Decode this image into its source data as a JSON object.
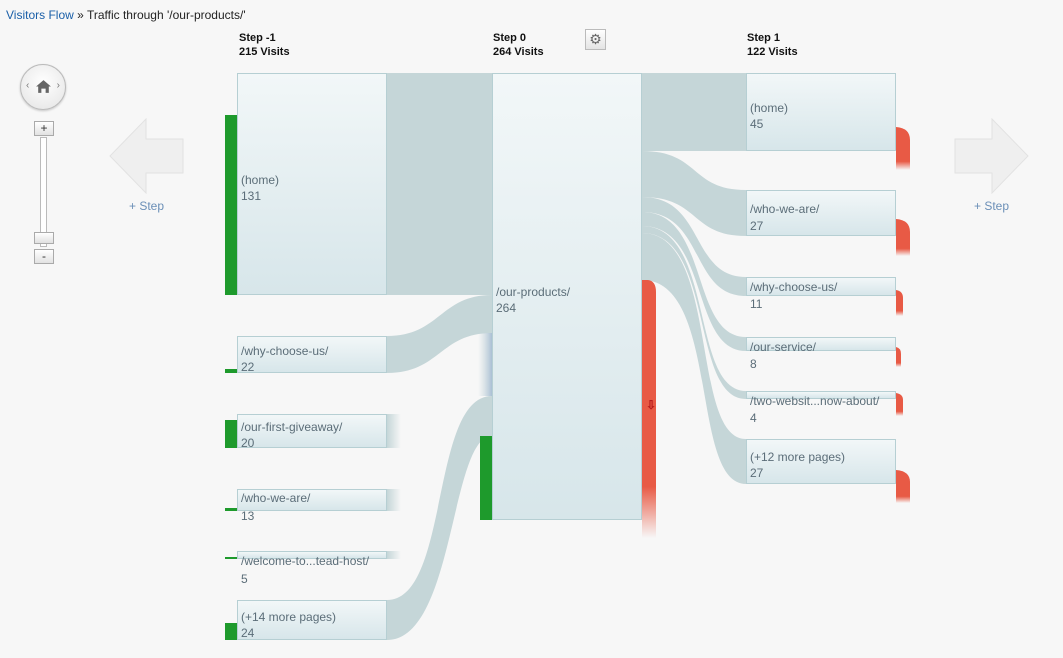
{
  "breadcrumb": {
    "root": "Visitors Flow",
    "separator": "»",
    "current": "Traffic through '/our-products/'"
  },
  "steps": [
    {
      "title": "Step -1",
      "visits": "215 Visits"
    },
    {
      "title": "Step 0",
      "visits": "264 Visits"
    },
    {
      "title": "Step 1",
      "visits": "122 Visits"
    }
  ],
  "step_minus1_nodes": [
    {
      "label": "(home)",
      "count": "131"
    },
    {
      "label": "/why-choose-us/",
      "count": "22"
    },
    {
      "label": "/our-first-giveaway/",
      "count": "20"
    },
    {
      "label": "/who-we-are/",
      "count": "13"
    },
    {
      "label": "/welcome-to...tead-host/",
      "count": "5"
    },
    {
      "label": "(+14 more pages)",
      "count": "24"
    }
  ],
  "step0_node": {
    "label": "/our-products/",
    "count": "264"
  },
  "step1_nodes": [
    {
      "label": "(home)",
      "count": "45"
    },
    {
      "label": "/who-we-are/",
      "count": "27"
    },
    {
      "label": "/why-choose-us/",
      "count": "11"
    },
    {
      "label": "/our-service/",
      "count": "8"
    },
    {
      "label": "/two-websit...now-about/",
      "count": "4"
    },
    {
      "label": "(+12 more pages)",
      "count": "27"
    }
  ],
  "controls": {
    "add_step_left": "+ Step",
    "add_step_right": "+ Step",
    "zoom_in": "+",
    "zoom_out": "-",
    "pan_left": "‹",
    "pan_right": "›",
    "exit_marker": "⇩"
  },
  "icons": {
    "gear": "gear-icon",
    "home": "home-icon",
    "pan": "pan-control"
  },
  "colors": {
    "link": "#1a5fa8",
    "flow": "#c5d6d8",
    "entrance": "#1e9a2c",
    "exit": "#e85a45",
    "node_border": "#b6cfd3"
  }
}
